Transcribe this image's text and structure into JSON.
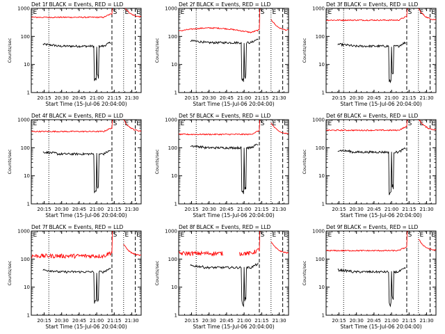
{
  "chart_data": {
    "type": "line",
    "layout": "3x3 grid",
    "x_ticks": [
      "20:15",
      "20:30",
      "20:45",
      "21:00",
      "21:15",
      "21:30"
    ],
    "y_ticks": [
      "1",
      "10",
      "100",
      "1000"
    ],
    "ylabel": "Counts/sec",
    "xlabel": "Start Time (15-Jul-06 20:04:00)",
    "y_scale": "log",
    "ylim": [
      1,
      1000
    ],
    "xlim_minutes": [
      0,
      94
    ],
    "x_tick_minutes": [
      11,
      26,
      41,
      56,
      71,
      86
    ],
    "dotted_lines_minutes": [
      15,
      79
    ],
    "dashed_lines_minutes": [
      69,
      89
    ],
    "region_markers": [
      {
        "label": "E",
        "minute": 1.5
      },
      {
        "label": "S",
        "minute": 70
      },
      {
        "label": "E",
        "minute": 80
      },
      {
        "label": "E",
        "minute": 90
      }
    ],
    "series_names": [
      "Events",
      "LLD"
    ],
    "series_colors": {
      "Events": "#000000",
      "LLD": "#ff0000"
    },
    "panels": [
      {
        "title": "Det 1f BLACK = Events, RED = LLD",
        "events_level": 45,
        "lld_level": 480,
        "lld_shape": "flat"
      },
      {
        "title": "Det 2f BLACK = Events, RED = LLD",
        "events_level": 60,
        "lld_level": 160,
        "lld_shape": "hump"
      },
      {
        "title": "Det 3f BLACK = Events, RED = LLD",
        "events_level": 45,
        "lld_level": 380,
        "lld_shape": "flat"
      },
      {
        "title": "Det 4f BLACK = Events, RED = LLD",
        "events_level": 60,
        "lld_level": 380,
        "lld_shape": "flat"
      },
      {
        "title": "Det 5f BLACK = Events, RED = LLD",
        "events_level": 100,
        "lld_level": 300,
        "lld_shape": "flat"
      },
      {
        "title": "Det 6f BLACK = Events, RED = LLD",
        "events_level": 70,
        "lld_level": 420,
        "lld_shape": "flat"
      },
      {
        "title": "Det 7f BLACK = Events, RED = LLD",
        "events_level": 35,
        "lld_level": 130,
        "lld_shape": "noisy"
      },
      {
        "title": "Det 8f BLACK = Events, RED = LLD",
        "events_level": 50,
        "lld_level": 160,
        "lld_shape": "noisy-gap"
      },
      {
        "title": "Det 9f BLACK = Events, RED = LLD",
        "events_level": 35,
        "lld_level": 200,
        "lld_shape": "flat"
      }
    ]
  }
}
